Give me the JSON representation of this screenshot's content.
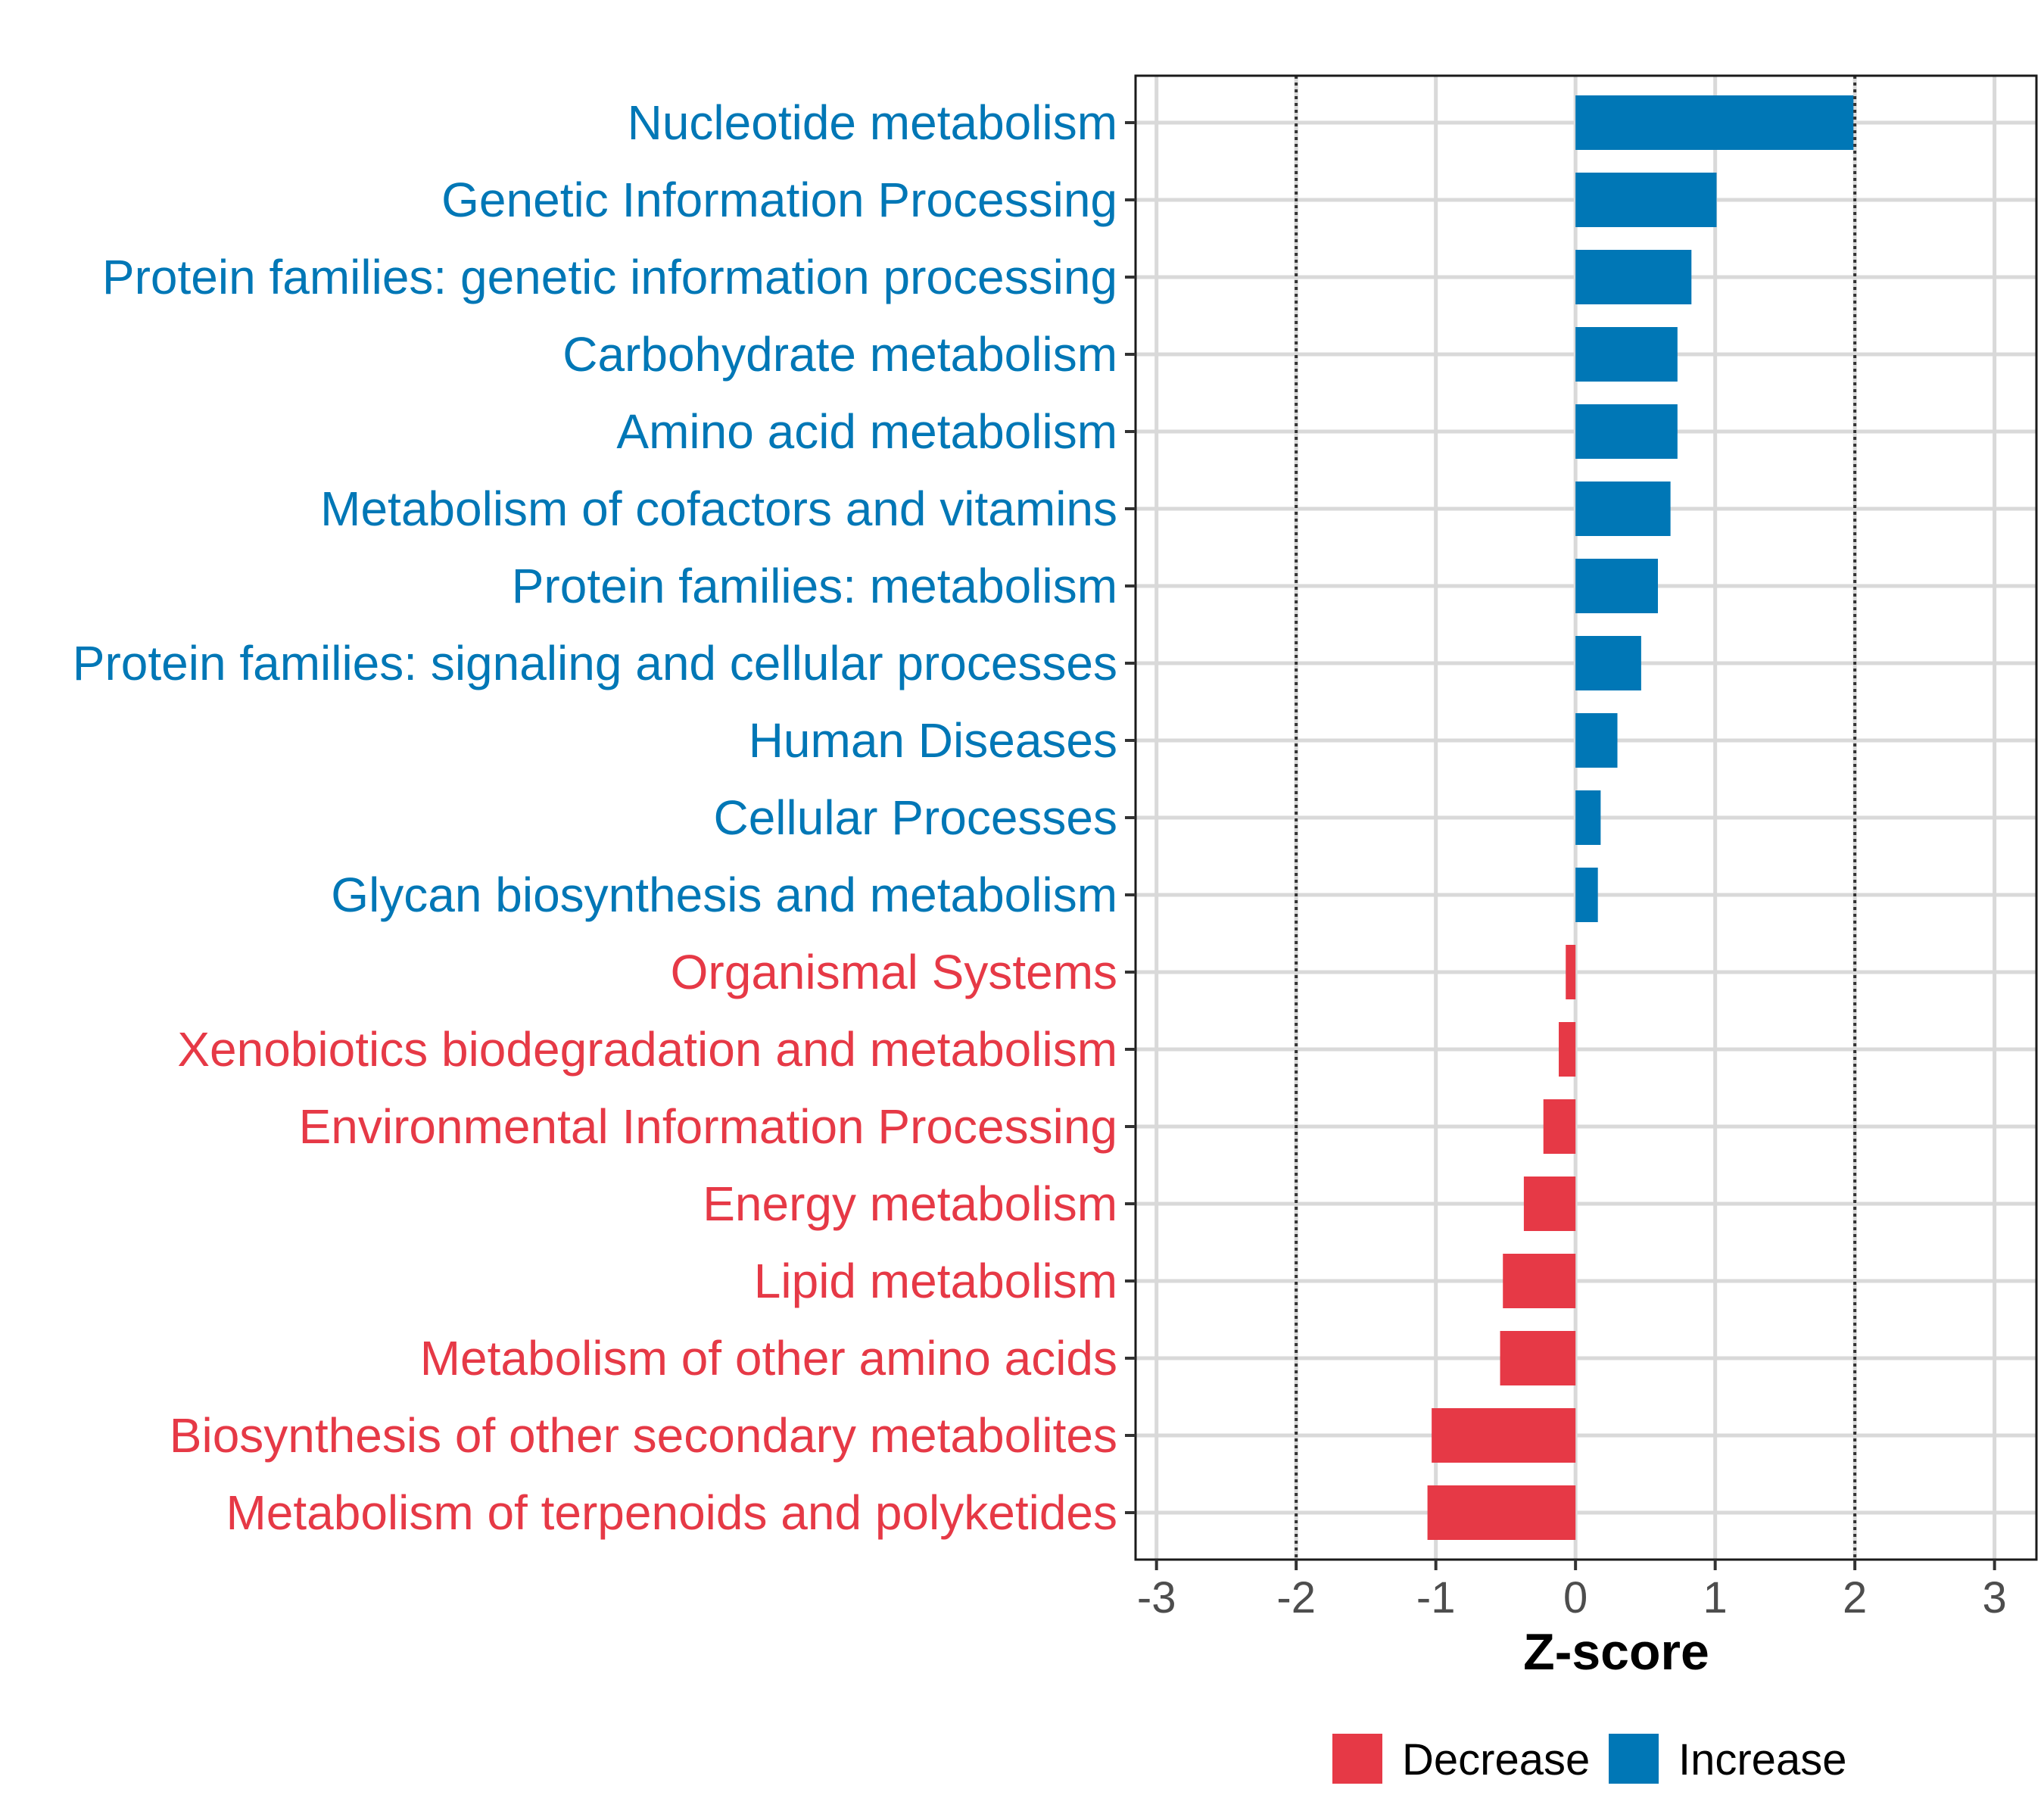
{
  "chart_data": {
    "type": "bar",
    "orientation": "horizontal",
    "title": "",
    "xlabel": "Z-score",
    "ylabel": "",
    "xlim": [
      -3.15,
      3.3
    ],
    "xticks": [
      -3,
      -2,
      -1,
      0,
      1,
      2,
      3
    ],
    "xtick_labels": [
      "-3",
      "-2",
      "-1",
      "0",
      "1",
      "2",
      "3"
    ],
    "reference_lines": [
      -2,
      2
    ],
    "grid": true,
    "legend_position": "bottom",
    "legend": [
      {
        "name": "Decrease",
        "color": "#E63946"
      },
      {
        "name": "Increase",
        "color": "#0077B6"
      }
    ],
    "categories": [
      "Nucleotide metabolism",
      "Genetic Information Processing",
      "Protein families: genetic information processing",
      "Carbohydrate metabolism",
      "Amino acid metabolism",
      "Metabolism of cofactors and vitamins",
      "Protein families: metabolism",
      "Protein families: signaling and cellular processes",
      "Human Diseases",
      "Cellular Processes",
      "Glycan biosynthesis and metabolism",
      "Organismal Systems",
      "Xenobiotics biodegradation and metabolism",
      "Environmental Information Processing",
      "Energy metabolism",
      "Lipid metabolism",
      "Metabolism of other amino acids",
      "Biosynthesis of other secondary metabolites",
      "Metabolism of terpenoids and polyketides"
    ],
    "values": [
      1.99,
      1.01,
      0.83,
      0.73,
      0.73,
      0.68,
      0.59,
      0.47,
      0.3,
      0.18,
      0.16,
      -0.07,
      -0.12,
      -0.23,
      -0.37,
      -0.52,
      -0.54,
      -1.03,
      -1.06
    ],
    "groups": [
      "Increase",
      "Increase",
      "Increase",
      "Increase",
      "Increase",
      "Increase",
      "Increase",
      "Increase",
      "Increase",
      "Increase",
      "Increase",
      "Decrease",
      "Decrease",
      "Decrease",
      "Decrease",
      "Decrease",
      "Decrease",
      "Decrease",
      "Decrease"
    ]
  }
}
